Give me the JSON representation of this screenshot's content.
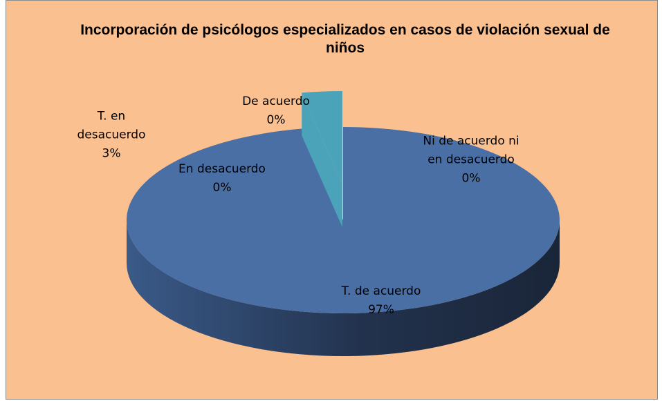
{
  "chart_data": {
    "type": "pie",
    "title": "Incorporación de psicólogos especializados en casos de violación sexual de niños",
    "categories": [
      "T. de acuerdo",
      "De acuerdo",
      "Ni de acuerdo ni en desacuerdo",
      "En desacuerdo",
      "T. en desacuerdo"
    ],
    "values": [
      97,
      0,
      0,
      0,
      3
    ],
    "value_labels": [
      "97%",
      "0%",
      "0%",
      "0%",
      "3%"
    ],
    "colors": [
      "#4a6fa5",
      "#3b2d5a",
      "#7b9d3f",
      "#a13f3c",
      "#4aa3b8"
    ]
  }
}
